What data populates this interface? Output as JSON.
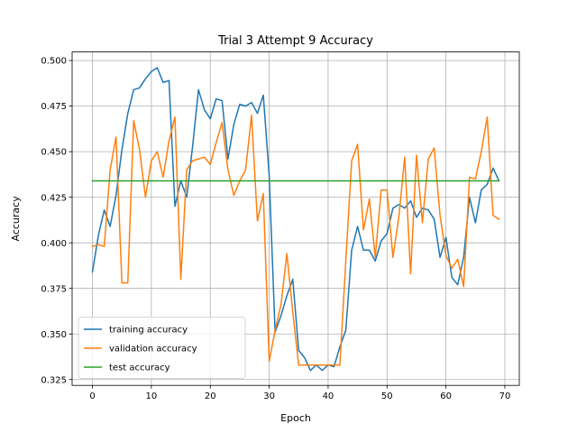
{
  "chart_data": {
    "type": "line",
    "title": "Trial 3 Attempt 9 Accuracy",
    "xlabel": "Epoch",
    "ylabel": "Accuracy",
    "xlim": [
      -3.45,
      72.45
    ],
    "ylim": [
      0.3218,
      0.5047
    ],
    "xticks": [
      0,
      10,
      20,
      30,
      40,
      50,
      60,
      70
    ],
    "yticks": [
      0.325,
      0.35,
      0.375,
      0.4,
      0.425,
      0.45,
      0.475,
      0.5
    ],
    "ytick_labels": [
      "0.325",
      "0.350",
      "0.375",
      "0.400",
      "0.425",
      "0.450",
      "0.475",
      "0.500"
    ],
    "grid": true,
    "legend_position": "lower-left",
    "series": [
      {
        "name": "training accuracy",
        "color": "#1f77b4",
        "x": [
          0,
          1,
          2,
          3,
          4,
          5,
          6,
          7,
          8,
          9,
          10,
          11,
          12,
          13,
          14,
          15,
          16,
          17,
          18,
          19,
          20,
          21,
          22,
          23,
          24,
          25,
          26,
          27,
          28,
          29,
          30,
          31,
          32,
          33,
          34,
          35,
          36,
          37,
          38,
          39,
          40,
          41,
          42,
          43,
          44,
          45,
          46,
          47,
          48,
          49,
          50,
          51,
          52,
          53,
          54,
          55,
          56,
          57,
          58,
          59,
          60,
          61,
          62,
          63,
          64,
          65,
          66,
          67,
          68,
          69
        ],
        "y": [
          0.384,
          0.404,
          0.418,
          0.409,
          0.426,
          0.451,
          0.471,
          0.484,
          0.485,
          0.49,
          0.494,
          0.496,
          0.488,
          0.489,
          0.42,
          0.434,
          0.425,
          0.453,
          0.484,
          0.473,
          0.468,
          0.479,
          0.478,
          0.446,
          0.465,
          0.476,
          0.475,
          0.477,
          0.471,
          0.481,
          0.437,
          0.351,
          0.36,
          0.371,
          0.38,
          0.341,
          0.337,
          0.33,
          0.333,
          0.33,
          0.333,
          0.332,
          0.343,
          0.352,
          0.396,
          0.409,
          0.396,
          0.396,
          0.39,
          0.401,
          0.405,
          0.419,
          0.421,
          0.419,
          0.423,
          0.414,
          0.419,
          0.418,
          0.413,
          0.392,
          0.403,
          0.381,
          0.377,
          0.392,
          0.425,
          0.411,
          0.429,
          0.432,
          0.441,
          0.434
        ]
      },
      {
        "name": "validation accuracy",
        "color": "#ff7f0e",
        "x": [
          0,
          1,
          2,
          3,
          4,
          5,
          6,
          7,
          8,
          9,
          10,
          11,
          12,
          13,
          14,
          15,
          16,
          17,
          18,
          19,
          20,
          21,
          22,
          23,
          24,
          25,
          26,
          27,
          28,
          29,
          30,
          31,
          32,
          33,
          34,
          35,
          36,
          37,
          38,
          39,
          40,
          41,
          42,
          43,
          44,
          45,
          46,
          47,
          48,
          49,
          50,
          51,
          52,
          53,
          54,
          55,
          56,
          57,
          58,
          59,
          60,
          61,
          62,
          63,
          64,
          65,
          66,
          67,
          68,
          69
        ],
        "y": [
          0.398,
          0.399,
          0.398,
          0.44,
          0.458,
          0.378,
          0.378,
          0.467,
          0.451,
          0.425,
          0.445,
          0.45,
          0.436,
          0.456,
          0.469,
          0.38,
          0.44,
          0.445,
          0.446,
          0.447,
          0.443,
          0.455,
          0.466,
          0.44,
          0.426,
          0.434,
          0.44,
          0.47,
          0.412,
          0.427,
          0.335,
          0.352,
          0.366,
          0.394,
          0.362,
          0.333,
          0.333,
          0.333,
          0.333,
          0.333,
          0.333,
          0.333,
          0.333,
          0.39,
          0.445,
          0.454,
          0.407,
          0.424,
          0.392,
          0.429,
          0.429,
          0.392,
          0.414,
          0.447,
          0.383,
          0.448,
          0.411,
          0.446,
          0.452,
          0.415,
          0.393,
          0.386,
          0.391,
          0.376,
          0.436,
          0.435,
          0.45,
          0.469,
          0.415,
          0.413
        ]
      },
      {
        "name": "test accuracy",
        "color": "#2ca02c",
        "x": [
          0,
          69
        ],
        "y": [
          0.434,
          0.434
        ]
      }
    ]
  }
}
